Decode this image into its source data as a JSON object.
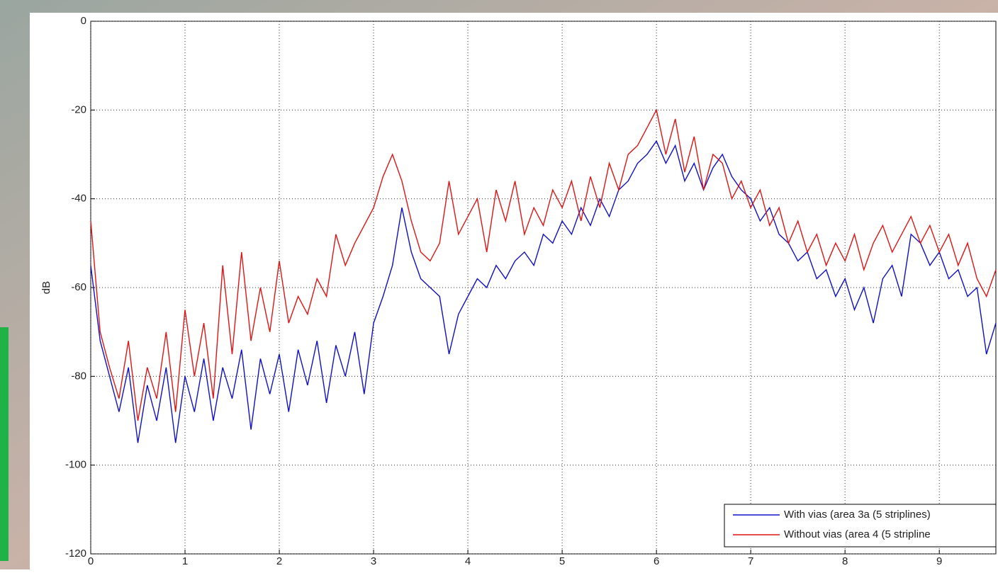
{
  "chart_data": {
    "type": "line",
    "ylabel": "dB",
    "x": [
      0,
      0.1,
      0.2,
      0.3,
      0.4,
      0.5,
      0.6,
      0.7,
      0.8,
      0.9,
      1,
      1.1,
      1.2,
      1.3,
      1.4,
      1.5,
      1.6,
      1.7,
      1.8,
      1.9,
      2,
      2.1,
      2.2,
      2.3,
      2.4,
      2.5,
      2.6,
      2.7,
      2.8,
      2.9,
      3,
      3.1,
      3.2,
      3.3,
      3.4,
      3.5,
      3.6,
      3.7,
      3.8,
      3.9,
      4,
      4.1,
      4.2,
      4.3,
      4.4,
      4.5,
      4.6,
      4.7,
      4.8,
      4.9,
      5,
      5.1,
      5.2,
      5.3,
      5.4,
      5.5,
      5.6,
      5.7,
      5.8,
      5.9,
      6,
      6.1,
      6.2,
      6.3,
      6.4,
      6.5,
      6.6,
      6.7,
      6.8,
      6.9,
      7,
      7.1,
      7.2,
      7.3,
      7.4,
      7.5,
      7.6,
      7.7,
      7.8,
      7.9,
      8,
      8.1,
      8.2,
      8.3,
      8.4,
      8.5,
      8.6,
      8.7,
      8.8,
      8.9,
      9,
      9.1,
      9.2,
      9.3,
      9.4,
      9.5,
      9.6
    ],
    "series": [
      {
        "name": "With vias (area 3a (5 striplines)",
        "color": "#1010c8",
        "values": [
          -55,
          -72,
          -80,
          -88,
          -78,
          -95,
          -82,
          -90,
          -78,
          -95,
          -80,
          -88,
          -76,
          -90,
          -78,
          -85,
          -74,
          -92,
          -76,
          -84,
          -75,
          -88,
          -74,
          -82,
          -72,
          -86,
          -73,
          -80,
          -70,
          -84,
          -68,
          -62,
          -55,
          -42,
          -52,
          -58,
          -60,
          -62,
          -75,
          -66,
          -62,
          -58,
          -60,
          -55,
          -58,
          -54,
          -52,
          -55,
          -48,
          -50,
          -45,
          -48,
          -42,
          -46,
          -40,
          -44,
          -38,
          -36,
          -32,
          -30,
          -27,
          -32,
          -28,
          -36,
          -32,
          -38,
          -33,
          -30,
          -35,
          -38,
          -40,
          -45,
          -42,
          -48,
          -50,
          -54,
          -52,
          -58,
          -56,
          -62,
          -58,
          -65,
          -60,
          -68,
          -58,
          -55,
          -62,
          -48,
          -50,
          -55,
          -52,
          -58,
          -56,
          -62,
          -60,
          -75,
          -68
        ]
      },
      {
        "name": "Without vias (area 4 (5 stripline",
        "color": "#e01414",
        "values": [
          -45,
          -70,
          -78,
          -85,
          -72,
          -90,
          -78,
          -85,
          -70,
          -88,
          -65,
          -80,
          -68,
          -85,
          -55,
          -75,
          -52,
          -72,
          -60,
          -70,
          -54,
          -68,
          -62,
          -66,
          -58,
          -62,
          -48,
          -55,
          -50,
          -46,
          -42,
          -35,
          -30,
          -36,
          -45,
          -52,
          -54,
          -50,
          -36,
          -48,
          -44,
          -40,
          -52,
          -38,
          -45,
          -36,
          -48,
          -42,
          -46,
          -38,
          -42,
          -36,
          -45,
          -35,
          -42,
          -32,
          -38,
          -30,
          -28,
          -24,
          -20,
          -30,
          -22,
          -34,
          -26,
          -38,
          -30,
          -32,
          -40,
          -36,
          -42,
          -38,
          -46,
          -42,
          -50,
          -45,
          -52,
          -48,
          -55,
          -50,
          -54,
          -48,
          -56,
          -50,
          -46,
          -52,
          -48,
          -44,
          -50,
          -46,
          -52,
          -48,
          -55,
          -50,
          -58,
          -62,
          -56
        ]
      }
    ],
    "xlim": [
      0,
      9.6
    ],
    "ylim": [
      -120,
      0
    ],
    "xticks": [
      0,
      1,
      2,
      3,
      4,
      5,
      6,
      7,
      8,
      9
    ],
    "yticks": [
      0,
      -20,
      -40,
      -60,
      -80,
      -100,
      -120
    ],
    "grid": true,
    "legend": "lower right"
  }
}
